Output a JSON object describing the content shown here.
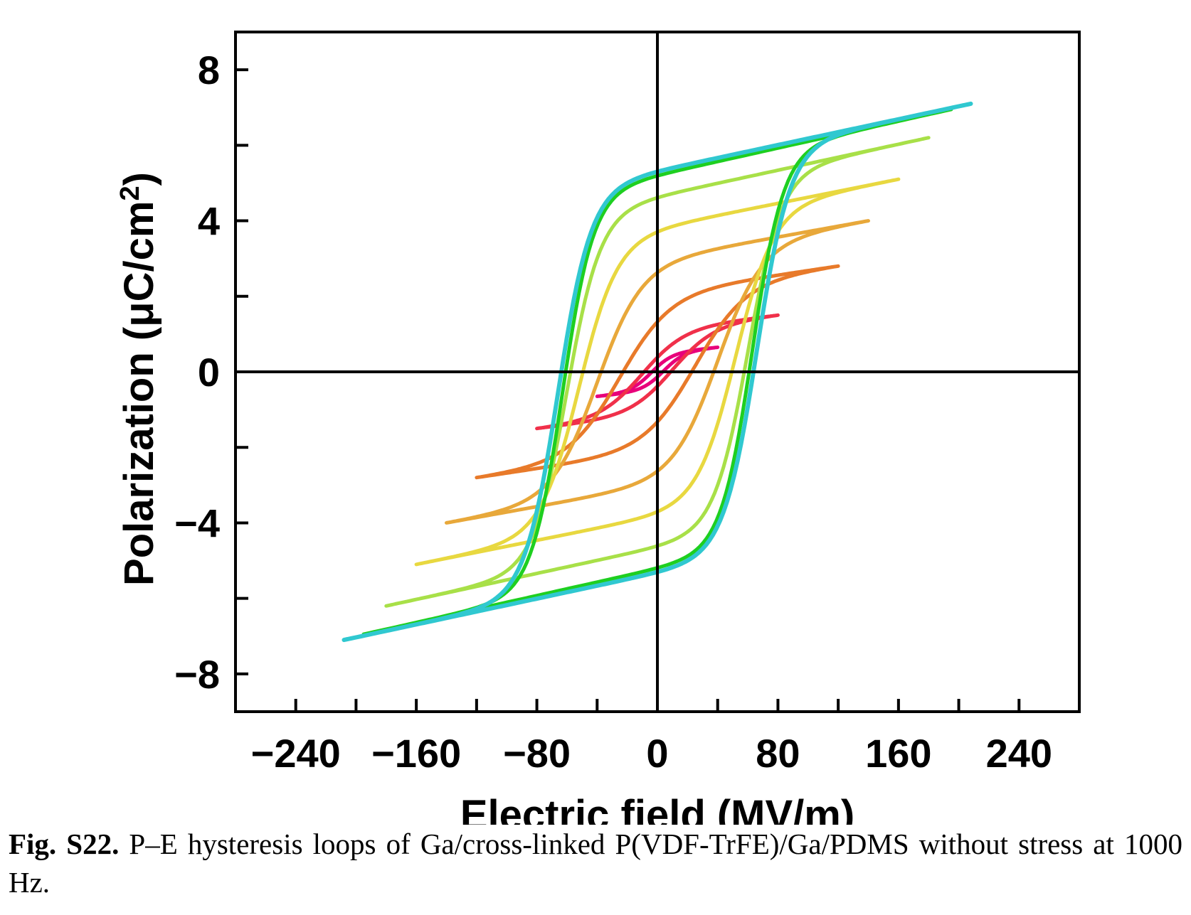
{
  "chart_data": {
    "type": "line",
    "xlabel": "Electric field (MV/m)",
    "ylabel_main": "Polarization (μC/cm",
    "ylabel_sup": "2",
    "ylabel_close": ")",
    "xlim": [
      -280,
      280
    ],
    "ylim": [
      -9,
      9
    ],
    "x_ticks": [
      -240,
      -160,
      -80,
      0,
      80,
      160,
      240
    ],
    "x_tick_labels": [
      "−240",
      "−160",
      "−80",
      "0",
      "80",
      "160",
      "240"
    ],
    "y_ticks": [
      8,
      4,
      0,
      -4,
      -8
    ],
    "y_tick_labels": [
      "8",
      "4",
      "0",
      "−4",
      "−8"
    ],
    "grid": false,
    "series": [
      {
        "color": "#e8007a",
        "Emax": 40,
        "Pmax": 0.65,
        "Pr": 0.08,
        "Ec": 4,
        "Pmid": 0.22,
        "soft": 1.0
      },
      {
        "color": "#f0304a",
        "Emax": 80,
        "Pmax": 1.5,
        "Pr": 0.25,
        "Ec": 10,
        "Pmid": 0.8,
        "soft": 1.0
      },
      {
        "color": "#e87a2a",
        "Emax": 120,
        "Pmax": 2.8,
        "Pr": 1.0,
        "Ec": 25,
        "Pmid": 2.2,
        "soft": 0.8
      },
      {
        "color": "#e8a83a",
        "Emax": 140,
        "Pmax": 4.0,
        "Pr": 1.9,
        "Ec": 40,
        "Pmid": 3.3,
        "soft": 0.6
      },
      {
        "color": "#e8d840",
        "Emax": 160,
        "Pmax": 5.1,
        "Pr": 2.8,
        "Ec": 52,
        "Pmid": 4.5,
        "soft": 0.45
      },
      {
        "color": "#a8e048",
        "Emax": 180,
        "Pmax": 6.2,
        "Pr": 3.6,
        "Ec": 60,
        "Pmid": 5.5,
        "soft": 0.35
      },
      {
        "color": "#1ecf20",
        "Emax": 195,
        "Pmax": 6.95,
        "Pr": 4.0,
        "Ec": 63,
        "Pmid": 6.2,
        "soft": 0.3
      },
      {
        "color": "#30c8d0",
        "Emax": 208,
        "Pmax": 7.1,
        "Pr": 4.3,
        "Ec": 66,
        "Pmid": 6.5,
        "soft": 0.3
      }
    ]
  },
  "caption": {
    "label": "Fig. S22.",
    "text": " P–E hysteresis loops of Ga/cross-linked P(VDF-TrFE)/Ga/PDMS without stress at 1000 Hz."
  }
}
